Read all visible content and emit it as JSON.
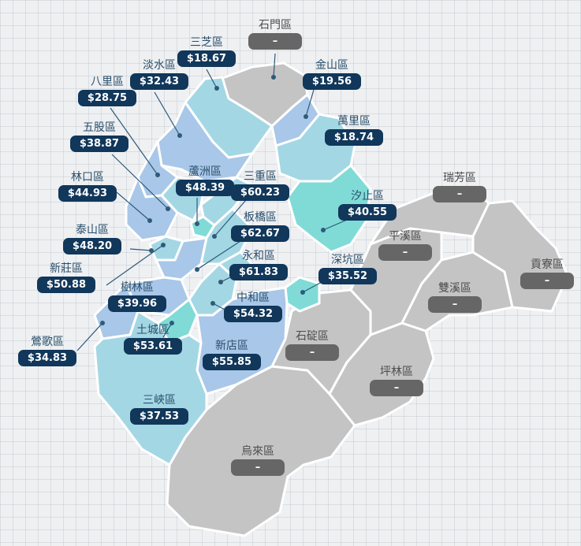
{
  "colors": {
    "nodata": "#c4c4c4",
    "light": "#a4d7e4",
    "mid": "#a9c7e8",
    "teal": "#80dbd7",
    "pill": "#11375a",
    "pill_nodata": "#666666"
  },
  "districts": [
    {
      "id": "shimen",
      "name": "石門區",
      "value": "–"
    },
    {
      "id": "sanzhi",
      "name": "三芝區",
      "value": "$18.67"
    },
    {
      "id": "jinshan",
      "name": "金山區",
      "value": "$19.56"
    },
    {
      "id": "tamsui",
      "name": "淡水區",
      "value": "$32.43"
    },
    {
      "id": "bali",
      "name": "八里區",
      "value": "$28.75"
    },
    {
      "id": "wanli",
      "name": "萬里區",
      "value": "$18.74"
    },
    {
      "id": "wugu",
      "name": "五股區",
      "value": "$38.87"
    },
    {
      "id": "linkou",
      "name": "林口區",
      "value": "$44.93"
    },
    {
      "id": "luzhou",
      "name": "蘆洲區",
      "value": "$48.39"
    },
    {
      "id": "sanchong",
      "name": "三重區",
      "value": "$60.23"
    },
    {
      "id": "ruifang",
      "name": "瑞芳區",
      "value": "–"
    },
    {
      "id": "xizhi",
      "name": "汐止區",
      "value": "$40.55"
    },
    {
      "id": "taishan",
      "name": "泰山區",
      "value": "$48.20"
    },
    {
      "id": "banqiao",
      "name": "板橋區",
      "value": "$62.67"
    },
    {
      "id": "pingxi",
      "name": "平溪區",
      "value": "–"
    },
    {
      "id": "xinzhuang",
      "name": "新莊區",
      "value": "$50.88"
    },
    {
      "id": "yonghe",
      "name": "永和區",
      "value": "$61.83"
    },
    {
      "id": "gongliao",
      "name": "貢寮區",
      "value": "–"
    },
    {
      "id": "shenkeng",
      "name": "深坑區",
      "value": "$35.52"
    },
    {
      "id": "shulin",
      "name": "樹林區",
      "value": "$39.96"
    },
    {
      "id": "shuangxi",
      "name": "雙溪區",
      "value": "–"
    },
    {
      "id": "zhonghe",
      "name": "中和區",
      "value": "$54.32"
    },
    {
      "id": "yingge",
      "name": "鶯歌區",
      "value": "$34.83"
    },
    {
      "id": "tucheng",
      "name": "土城區",
      "value": "$53.61"
    },
    {
      "id": "shiding",
      "name": "石碇區",
      "value": "–"
    },
    {
      "id": "xindian",
      "name": "新店區",
      "value": "$55.85"
    },
    {
      "id": "pinglin",
      "name": "坪林區",
      "value": "–"
    },
    {
      "id": "sanxia",
      "name": "三峽區",
      "value": "$37.53"
    },
    {
      "id": "wulai",
      "name": "烏來區",
      "value": "–"
    }
  ]
}
